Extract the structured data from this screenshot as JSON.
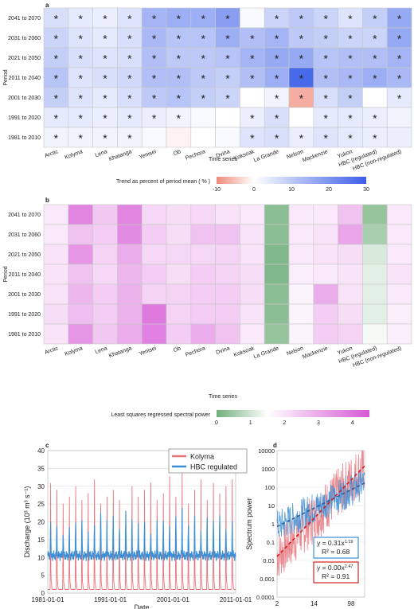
{
  "colors": {
    "neg": "#f08a7a",
    "pos": "#3b5ee8",
    "power_low": "#6fae7a",
    "power_high": "#d659d6",
    "kolyma": "#e8747c",
    "hbc": "#3a8fd6",
    "kolyma_fit": "#d62020",
    "hbc_fit": "#2a5a9a",
    "grid": "#c8c8c8"
  },
  "chart_data": [
    {
      "panel": "a",
      "type": "heatmap",
      "ylabel": "Period",
      "xlabel": "Time series",
      "rows": [
        "2041 to 2070",
        "2031 to 2060",
        "2021 to 2050",
        "2011 to 2040",
        "2001 to 2030",
        "1991 to 2020",
        "1981 to 2010"
      ],
      "columns": [
        "Arctic",
        "Kolyma",
        "Lena",
        "Khatanga",
        "Yenisei",
        "Ob",
        "Pechora",
        "Dvina",
        "Koksoak",
        "La Grande",
        "Nelson",
        "Mackenzie",
        "Yukon",
        "HBC (regulated)",
        "HBC (non-regulated)"
      ],
      "values": [
        [
          6,
          4,
          3,
          5,
          14,
          15,
          15,
          18,
          1,
          8,
          10,
          8,
          5,
          9,
          16
        ],
        [
          8,
          5,
          4,
          6,
          13,
          11,
          11,
          15,
          12,
          14,
          10,
          9,
          8,
          8,
          16
        ],
        [
          9,
          6,
          5,
          6,
          12,
          10,
          10,
          11,
          14,
          16,
          16,
          11,
          12,
          12,
          14
        ],
        [
          11,
          5,
          6,
          7,
          12,
          12,
          10,
          9,
          12,
          15,
          28,
          12,
          13,
          15,
          13
        ],
        [
          9,
          5,
          4,
          6,
          10,
          11,
          9,
          8,
          0,
          2,
          -7,
          6,
          9,
          0,
          4
        ],
        [
          4,
          4,
          3,
          4,
          3,
          2,
          1,
          0,
          3,
          6,
          0,
          4,
          4,
          3,
          2
        ],
        [
          2,
          2,
          2,
          2,
          1,
          -1,
          0,
          1,
          5,
          6,
          3,
          5,
          4,
          3,
          3
        ]
      ],
      "significant": [
        [
          1,
          1,
          1,
          1,
          1,
          1,
          1,
          1,
          0,
          1,
          1,
          1,
          1,
          1,
          1
        ],
        [
          1,
          1,
          1,
          1,
          1,
          1,
          1,
          1,
          1,
          1,
          1,
          1,
          1,
          1,
          1
        ],
        [
          1,
          1,
          1,
          1,
          1,
          1,
          1,
          1,
          1,
          1,
          1,
          1,
          1,
          1,
          1
        ],
        [
          1,
          1,
          1,
          1,
          1,
          1,
          1,
          1,
          1,
          1,
          1,
          1,
          1,
          1,
          1
        ],
        [
          1,
          1,
          1,
          1,
          1,
          1,
          1,
          1,
          0,
          1,
          1,
          1,
          1,
          0,
          1
        ],
        [
          1,
          1,
          1,
          1,
          1,
          1,
          0,
          0,
          1,
          1,
          0,
          1,
          1,
          1,
          0
        ],
        [
          1,
          1,
          1,
          1,
          0,
          0,
          0,
          0,
          1,
          1,
          1,
          1,
          1,
          1,
          0
        ]
      ],
      "marker": "*",
      "colorbar": {
        "label": "Trend as percent of period mean ( % )",
        "min": -10,
        "max": 30,
        "ticks": [
          "-10",
          "0",
          "10",
          "20",
          "30"
        ]
      }
    },
    {
      "panel": "b",
      "type": "heatmap",
      "ylabel": "Period",
      "xlabel": "Time series",
      "rows": [
        "2041 to 2070",
        "2031 to 2060",
        "2021 to 2050",
        "2011 to 2040",
        "2001 to 2030",
        "1991 to 2020",
        "1981 to 2010"
      ],
      "columns": [
        "Arctic",
        "Kolyma",
        "Lena",
        "Khatanga",
        "Yenisei",
        "Ob",
        "Pechora",
        "Dvina",
        "Koksoak",
        "La Grande",
        "Nelson",
        "Mackenzie",
        "Yukon",
        "HBC (regulated)",
        "HBC (non-regulated)"
      ],
      "values": [
        [
          1.9,
          3.7,
          2.5,
          3.7,
          2.2,
          2.1,
          2.2,
          2.0,
          1.9,
          0.3,
          1.9,
          1.9,
          2.6,
          0.4,
          1.9
        ],
        [
          1.9,
          2.6,
          2.4,
          3.6,
          2.4,
          2.1,
          2.6,
          2.6,
          2.0,
          0.3,
          1.9,
          2.0,
          3.1,
          0.6,
          1.9
        ],
        [
          2.0,
          3.4,
          2.3,
          3.0,
          2.2,
          2.2,
          2.2,
          2.3,
          2.0,
          0.2,
          1.9,
          2.0,
          2.1,
          1.1,
          1.9
        ],
        [
          2.0,
          2.6,
          2.2,
          2.8,
          2.4,
          2.1,
          2.4,
          2.3,
          2.1,
          0.2,
          1.8,
          1.9,
          2.0,
          1.2,
          2.0
        ],
        [
          2.0,
          2.8,
          2.4,
          2.9,
          2.3,
          2.3,
          2.4,
          2.4,
          2.1,
          0.3,
          1.7,
          3.0,
          2.0,
          1.2,
          1.9
        ],
        [
          2.1,
          2.7,
          2.4,
          2.9,
          3.9,
          2.3,
          2.4,
          2.4,
          2.0,
          0.3,
          1.7,
          2.4,
          2.1,
          1.2,
          1.8
        ],
        [
          2.0,
          3.4,
          2.5,
          3.0,
          3.8,
          2.4,
          3.0,
          2.6,
          1.9,
          0.4,
          1.7,
          2.4,
          2.3,
          1.4,
          1.8
        ]
      ],
      "colorbar": {
        "label": "Least squares regressed spectral power",
        "min": 0,
        "max": 4.5,
        "ticks": [
          "0",
          "1",
          "2",
          "3",
          "4"
        ]
      }
    },
    {
      "panel": "c",
      "type": "line",
      "xlabel": "Date",
      "ylabel": "Discharge (10³ m³ s⁻¹)",
      "ylim": [
        0,
        40
      ],
      "yticks": [
        "0",
        "5",
        "10",
        "15",
        "20",
        "25",
        "30",
        "35",
        "40"
      ],
      "xticks": [
        "1981-01-01",
        "1991-01-01",
        "2001-01-01",
        "2011-01-01"
      ],
      "x_range": [
        "1981-01-01",
        "2011-01-01"
      ],
      "legend_position": "top-right",
      "series": [
        {
          "name": "Kolyma",
          "description": "annual cycle, low flow ~1, summer peaks",
          "annual_peaks": [
            32,
            30,
            26,
            28,
            31,
            27,
            29,
            33,
            26,
            28,
            30,
            27,
            24,
            31,
            28,
            30,
            32,
            27,
            29,
            34,
            28,
            35,
            26,
            30,
            33,
            27,
            32,
            29,
            31,
            33
          ],
          "base": 1
        },
        {
          "name": "HBC regulated",
          "description": "annual cycle around 10-12 with peaks",
          "annual_peaks": [
            20,
            19,
            17,
            18,
            21,
            20,
            18,
            19,
            23,
            21,
            22,
            18,
            24,
            20,
            21,
            19,
            18,
            20,
            21,
            19,
            22,
            24,
            20,
            21,
            19,
            20,
            22,
            21,
            19,
            20
          ],
          "base": 9
        }
      ]
    },
    {
      "panel": "d",
      "type": "scatter",
      "xlabel": "Period",
      "ylabel": "Spectrum power",
      "xscale": "log",
      "yscale": "log",
      "xlim": [
        2,
        200
      ],
      "ylim": [
        0.0001,
        10000
      ],
      "xticks": [
        "2",
        "14",
        "98"
      ],
      "yticks": [
        "0.0001",
        "0.001",
        "0.01",
        "0.1",
        "1",
        "10",
        "100",
        "1000",
        "10000"
      ],
      "fits": [
        {
          "series": "HBC regulated",
          "a": 0.31,
          "b": 1.19,
          "equation_base": "y = 0.31x",
          "exponent": "1.19",
          "r2": "R² = 0.68"
        },
        {
          "series": "Kolyma",
          "a": 0.003,
          "b": 2.47,
          "equation_base": "y = 0.00x",
          "exponent": "2.47",
          "r2": "R² = 0.91"
        }
      ]
    }
  ],
  "panel_labels": {
    "a": "a",
    "b": "b",
    "c": "c",
    "d": "d"
  }
}
